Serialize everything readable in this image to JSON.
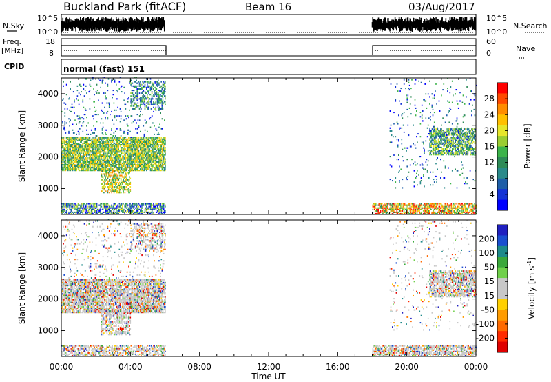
{
  "header": {
    "station": "Buckland Park (fitACF)",
    "beam": "Beam 16",
    "date": "03/Aug/2017"
  },
  "strips": {
    "nsky": {
      "label": "N.Sky",
      "ticks": [
        "10^5",
        "10^0"
      ]
    },
    "nsearch": {
      "label": "N.Search",
      "ticks": [
        "10^5",
        "10^0"
      ]
    },
    "freq": {
      "label_line1": "Freq.",
      "label_line2": "[MHz]",
      "ticks": [
        "18",
        "8"
      ]
    },
    "nave": {
      "label": "Nave",
      "ticks": [
        "60",
        "0"
      ]
    },
    "cpid": {
      "label": "CPID",
      "value": "normal (fast) 151"
    }
  },
  "chart_data": [
    {
      "type": "heatmap",
      "panel": "power",
      "xlabel": "",
      "ylabel": "Slant Range [km]",
      "xlim": [
        0,
        24
      ],
      "ylim": [
        180,
        4500
      ],
      "y_ticks": [
        1000,
        2000,
        3000,
        4000
      ],
      "colorbar": {
        "label": "Power [dB]",
        "ticks": [
          "28",
          "24",
          "20",
          "16",
          "12",
          "8",
          "4"
        ],
        "colors": [
          "#ff0000",
          "#ff4a00",
          "#ff8c00",
          "#ffc000",
          "#e6e62a",
          "#9acd32",
          "#3cb44a",
          "#2e8b57",
          "#2a8a8a",
          "#1f5fa8",
          "#1433d6",
          "#0000ff"
        ]
      },
      "coverage_hours": [
        [
          0,
          6
        ],
        [
          18,
          24
        ]
      ]
    },
    {
      "type": "heatmap",
      "panel": "velocity",
      "xlabel": "Time UT",
      "ylabel": "Slant Range [km]",
      "xlim": [
        0,
        24
      ],
      "ylim": [
        180,
        4500
      ],
      "y_ticks": [
        1000,
        2000,
        3000,
        4000
      ],
      "x_ticks": [
        "00:00",
        "04:00",
        "08:00",
        "12:00",
        "16:00",
        "20:00",
        "00:00"
      ],
      "colorbar": {
        "label": "Velocity [m s",
        "label_sup": "-1",
        "label_end": "]",
        "ticks": [
          "200",
          "100",
          "50",
          "15",
          "-15",
          "-50",
          "-100",
          "-200"
        ],
        "colors": [
          "#2020c0",
          "#1a4fd0",
          "#1e8a8a",
          "#3aa83a",
          "#6fd04a",
          "#c8c8c8",
          "#c8c8c8",
          "#ffd000",
          "#ff9c00",
          "#ff6a00",
          "#ff2a00",
          "#e00000"
        ]
      },
      "coverage_hours": [
        [
          0,
          6
        ],
        [
          18,
          24
        ]
      ]
    }
  ],
  "colors": {
    "axis": "#000000",
    "background": "#ffffff"
  }
}
